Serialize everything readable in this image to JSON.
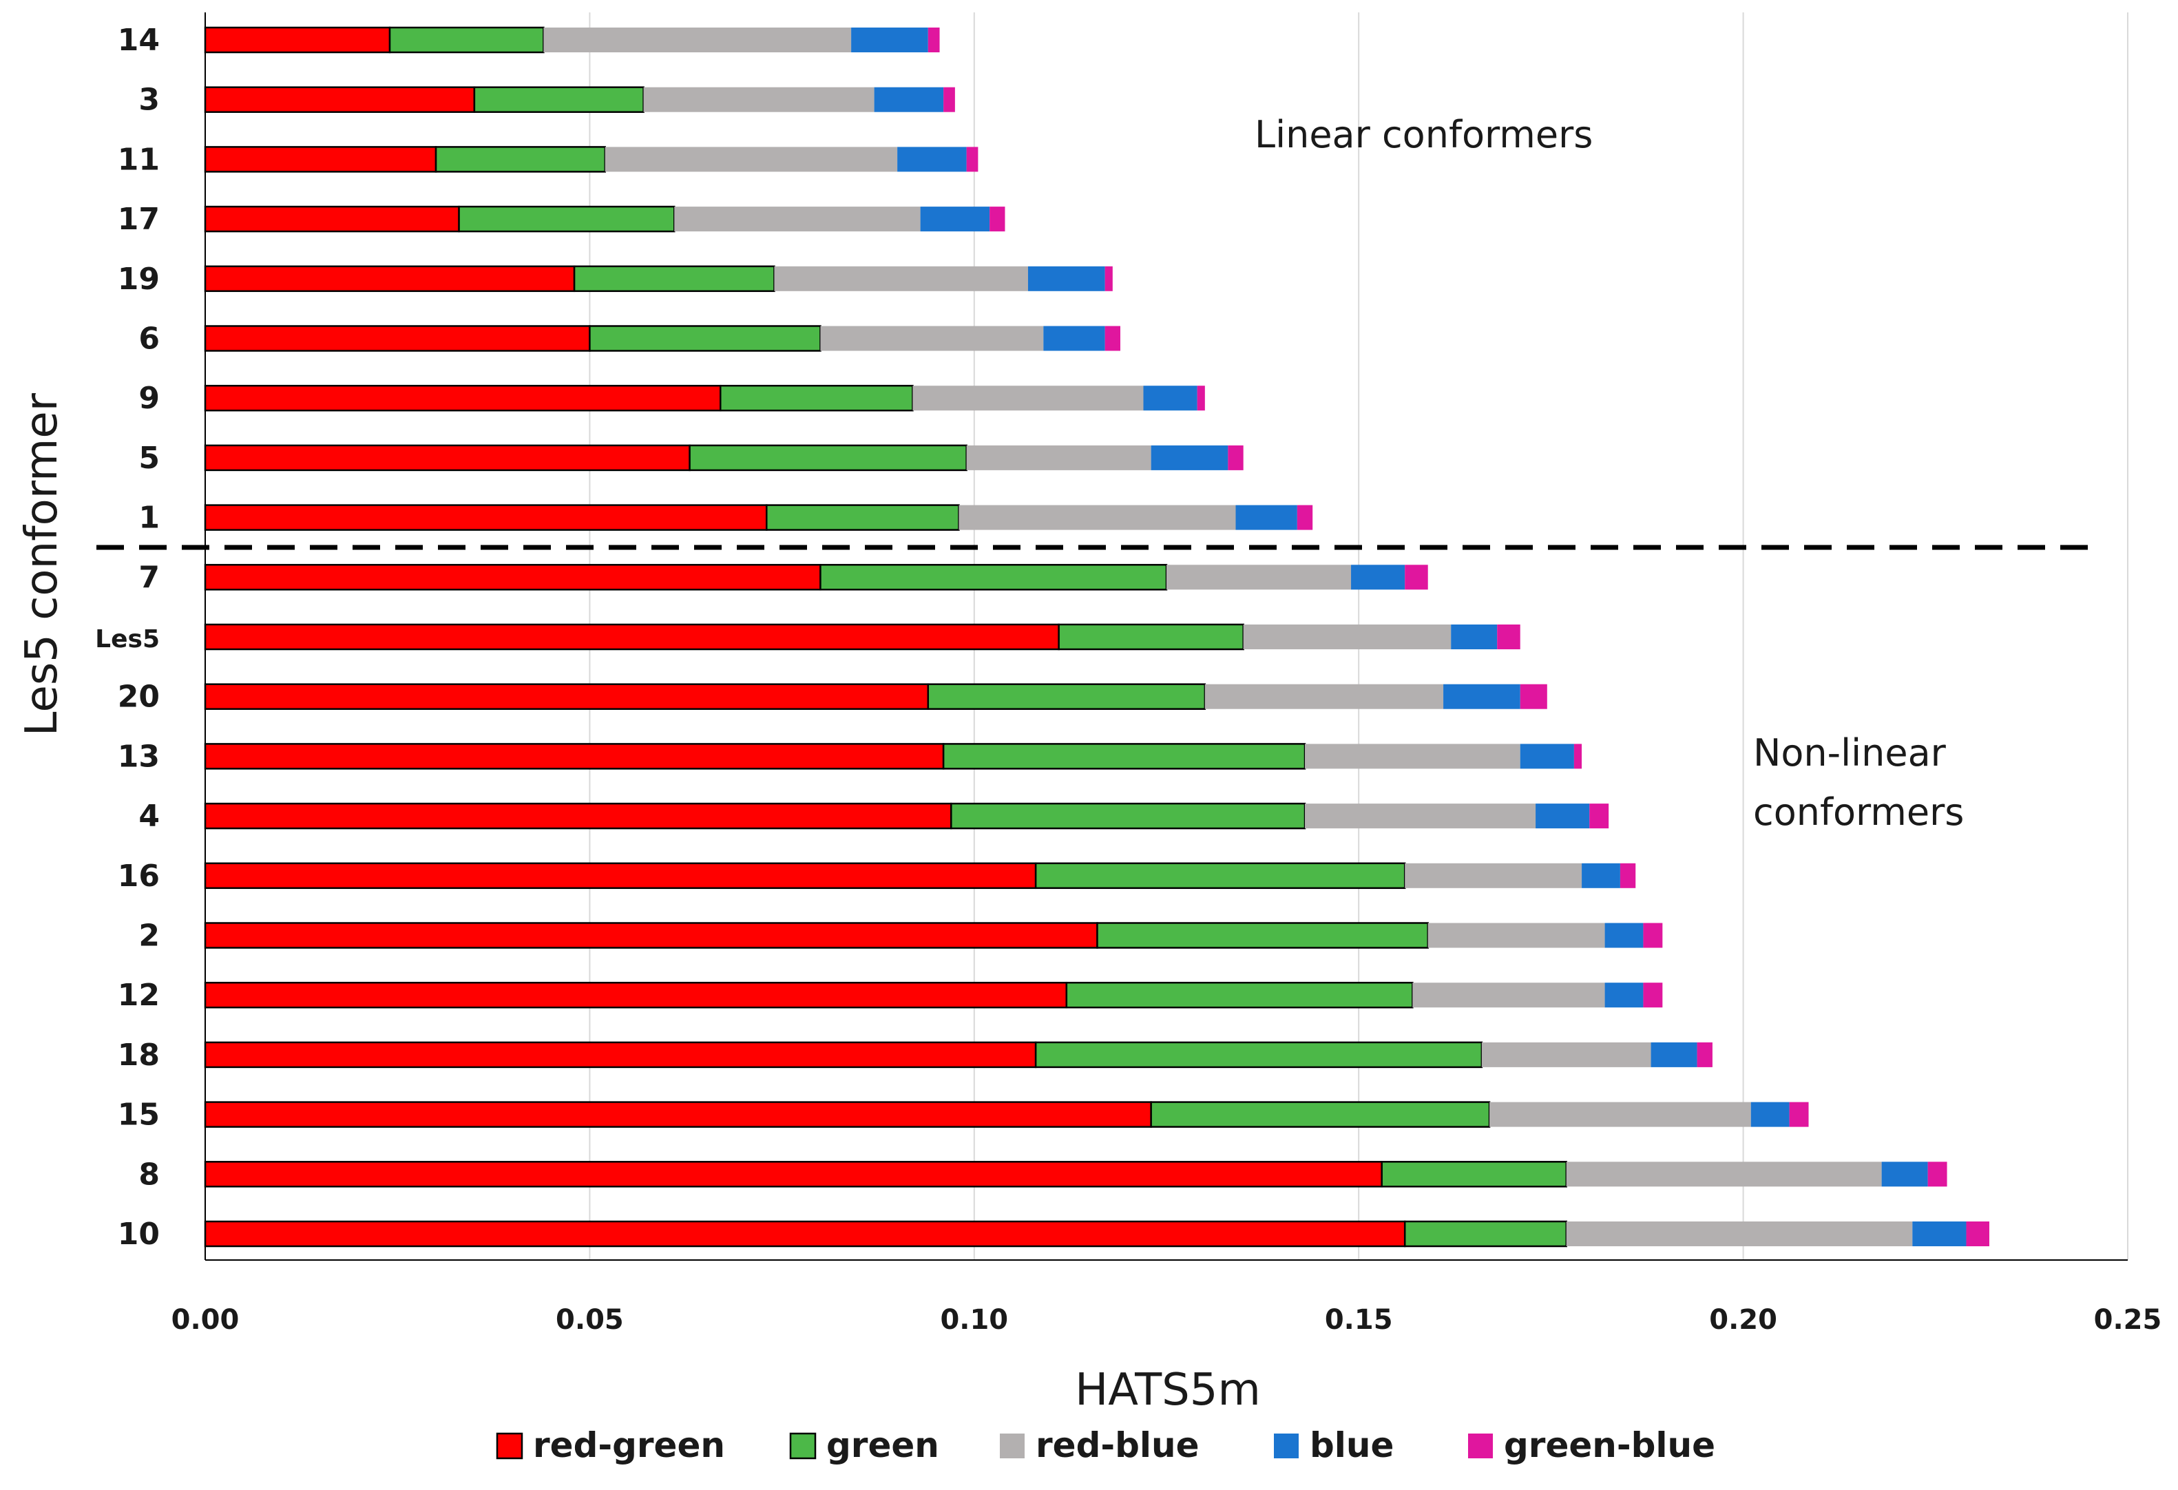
{
  "chart_data": {
    "type": "bar",
    "orientation": "horizontal",
    "stacked": true,
    "xlabel": "HATS5m",
    "ylabel": "Les5 conformer",
    "xlim": [
      0,
      0.25
    ],
    "xticks": [
      "0.00",
      "0.05",
      "0.10",
      "0.15",
      "0.20",
      "0.25"
    ],
    "grid": "vertical",
    "legend_position": "bottom",
    "categories": [
      "14",
      "3",
      "11",
      "17",
      "19",
      "6",
      "9",
      "5",
      "1",
      "7",
      "Les5",
      "20",
      "13",
      "4",
      "16",
      "2",
      "12",
      "18",
      "15",
      "8",
      "10"
    ],
    "series": [
      {
        "name": "red-green",
        "color": "#ff0000",
        "values": [
          0.024,
          0.035,
          0.03,
          0.033,
          0.048,
          0.05,
          0.067,
          0.063,
          0.073,
          0.08,
          0.111,
          0.094,
          0.096,
          0.097,
          0.108,
          0.116,
          0.112,
          0.108,
          0.123,
          0.153,
          0.156
        ]
      },
      {
        "name": "green",
        "color": "#4cb848",
        "values": [
          0.02,
          0.022,
          0.022,
          0.028,
          0.026,
          0.03,
          0.025,
          0.036,
          0.025,
          0.045,
          0.024,
          0.036,
          0.047,
          0.046,
          0.048,
          0.043,
          0.045,
          0.058,
          0.044,
          0.024,
          0.021
        ]
      },
      {
        "name": "red-blue",
        "color": "#b3b0b0",
        "values": [
          0.04,
          0.03,
          0.038,
          0.032,
          0.033,
          0.029,
          0.03,
          0.024,
          0.036,
          0.024,
          0.027,
          0.031,
          0.028,
          0.03,
          0.023,
          0.023,
          0.025,
          0.022,
          0.034,
          0.041,
          0.045
        ]
      },
      {
        "name": "blue",
        "color": "#1b75d0",
        "values": [
          0.01,
          0.009,
          0.009,
          0.009,
          0.01,
          0.008,
          0.007,
          0.01,
          0.008,
          0.007,
          0.006,
          0.01,
          0.007,
          0.007,
          0.005,
          0.005,
          0.005,
          0.006,
          0.005,
          0.006,
          0.007
        ]
      },
      {
        "name": "green-blue",
        "color": "#e0169e",
        "values": [
          0.0015,
          0.0015,
          0.0015,
          0.002,
          0.001,
          0.002,
          0.001,
          0.002,
          0.002,
          0.003,
          0.003,
          0.0035,
          0.001,
          0.0025,
          0.002,
          0.0025,
          0.0025,
          0.002,
          0.0025,
          0.0025,
          0.003
        ]
      }
    ],
    "annotations": [
      "Linear conformers",
      "Non-linear conformers"
    ],
    "divider_after_category": "1"
  },
  "annotations": {
    "linear": "Linear conformers",
    "nonlinear_line1": "Non-linear",
    "nonlinear_line2": "conformers"
  }
}
